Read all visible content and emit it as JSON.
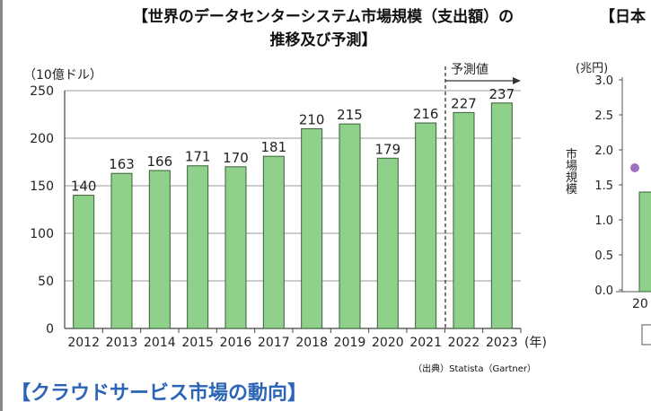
{
  "left_panel": {
    "title_line1": "【世界のデータセンターシステム市場規模（支出額）の",
    "title_line2": "推移及び予測】",
    "source": "（出典）Statista（Gartner）"
  },
  "right_panel": {
    "title": "【日本",
    "unit": "(兆円)",
    "ylabel": "市場規模",
    "y_ticks": [
      "3.0",
      "2.5",
      "2.0",
      "1.5",
      "1.0",
      "0.5",
      "0.0"
    ],
    "x_first_partial": "20"
  },
  "section_heading": "【クラウドサービス市場の動向】",
  "colors": {
    "bar": "#8fd08a",
    "bar_stroke": "#3a5f3a",
    "heading": "#2c65b5",
    "dot": "#a070c0"
  },
  "chart_data": {
    "type": "bar",
    "unit_label": "（10億ドル）",
    "forecast_label": "予測値",
    "x_suffix": "(年)",
    "categories": [
      "2012",
      "2013",
      "2014",
      "2015",
      "2016",
      "2017",
      "2018",
      "2019",
      "2020",
      "2021",
      "2022",
      "2023"
    ],
    "values": [
      140,
      163,
      166,
      171,
      170,
      181,
      210,
      215,
      179,
      216,
      227,
      237
    ],
    "value_labels": [
      "140",
      "163",
      "166",
      "171",
      "170",
      "181",
      "210",
      "215",
      "179",
      "216",
      "227",
      "237"
    ],
    "ylim": [
      0,
      250
    ],
    "y_ticks": [
      0,
      50,
      100,
      150,
      200,
      250
    ],
    "forecast_from_index": 10,
    "grid": true
  }
}
